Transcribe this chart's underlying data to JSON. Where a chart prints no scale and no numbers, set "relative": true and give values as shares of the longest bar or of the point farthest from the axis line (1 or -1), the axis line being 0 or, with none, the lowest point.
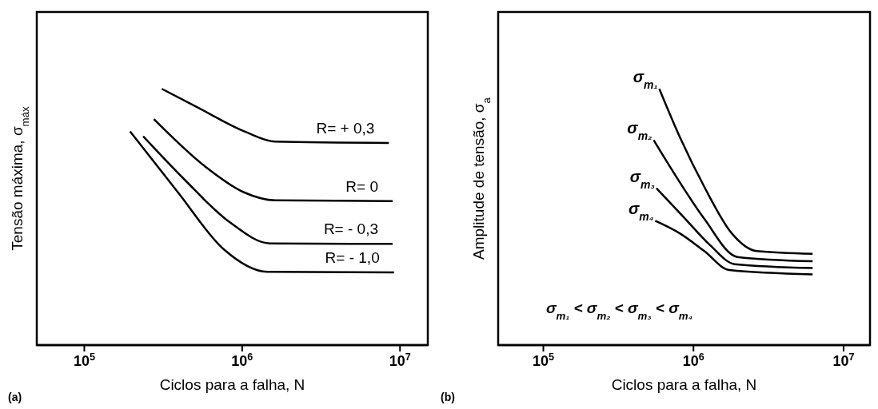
{
  "chart_data": [
    {
      "type": "line",
      "xlabel": "Ciclos para a falha, N",
      "ylabel": "Tensão máxima, σ$_{máx}$",
      "relative": true,
      "log": "x",
      "grid": false,
      "legend": false,
      "marker": "none",
      "line_style": "solid",
      "xlim": [
        50000,
        15000000
      ],
      "xticks": [
        {
          "value": 100000,
          "label": "10$^{5}$"
        },
        {
          "value": 1000000,
          "label": "10$^{6}$"
        },
        {
          "value": 10000000,
          "label": "10$^{7}$"
        }
      ],
      "annotations": [
        "(a)"
      ],
      "series": [
        {
          "name": "R= + 0,3",
          "color": "#000000",
          "x": [
            310000,
            524000,
            1060000,
            1620000,
            8500000
          ],
          "values": [
            1,
            0.927,
            0.831,
            0.794,
            0.789
          ]
        },
        {
          "name": "R= 0",
          "color": "#000000",
          "x": [
            276000,
            594000,
            1020000,
            1620000,
            8980000
          ],
          "values": [
            0.882,
            0.693,
            0.597,
            0.565,
            0.562
          ]
        },
        {
          "name": "R= - 0,3",
          "color": "#000000",
          "x": [
            236000,
            425000,
            832000,
            1500000,
            8980000
          ],
          "values": [
            0.815,
            0.65,
            0.48,
            0.397,
            0.395
          ]
        },
        {
          "name": "R= - 1,0",
          "color": "#000000",
          "x": [
            195000,
            391000,
            764000,
            1440000,
            9160000
          ],
          "values": [
            0.834,
            0.597,
            0.374,
            0.286,
            0.284
          ]
        }
      ]
    },
    {
      "type": "line",
      "xlabel": "Ciclos para a falha, N",
      "ylabel": "Amplitude de tensão, σ$_{a}$",
      "relative": true,
      "log": "x",
      "grid": false,
      "legend": false,
      "marker": "none",
      "line_style": "solid",
      "xlim": [
        50000,
        15000000
      ],
      "xticks": [
        {
          "value": 100000,
          "label": "10$^{5}$"
        },
        {
          "value": 1000000,
          "label": "10$^{6}$"
        },
        {
          "value": 10000000,
          "label": "10$^{7}$"
        }
      ],
      "annotations": [
        "σ$_{m₁}$ < σ$_{m₂}$ < σ$_{m₃}$ < σ$_{m₄}$",
        "(b)"
      ],
      "series": [
        {
          "name": "σ$_{m₁}$",
          "color": "#000000",
          "x": [
            592000,
            811000,
            1180000,
            1800000,
            2630000,
            6220000
          ],
          "values": [
            1,
            0.812,
            0.618,
            0.436,
            0.367,
            0.356
          ]
        },
        {
          "name": "σ$_{m₂}$",
          "color": "#000000",
          "x": [
            543000,
            778000,
            1180000,
            1960000,
            6220000
          ],
          "values": [
            0.8,
            0.652,
            0.493,
            0.344,
            0.327
          ]
        },
        {
          "name": "σ$_{m₃}$",
          "color": "#000000",
          "x": [
            567000,
            846000,
            1290000,
            1880000,
            6220000
          ],
          "values": [
            0.612,
            0.504,
            0.39,
            0.316,
            0.301
          ]
        },
        {
          "name": "σ$_{m₄}$",
          "color": "#000000",
          "x": [
            556000,
            811000,
            1180000,
            1730000,
            6220000
          ],
          "values": [
            0.485,
            0.436,
            0.367,
            0.293,
            0.276
          ]
        }
      ]
    }
  ]
}
